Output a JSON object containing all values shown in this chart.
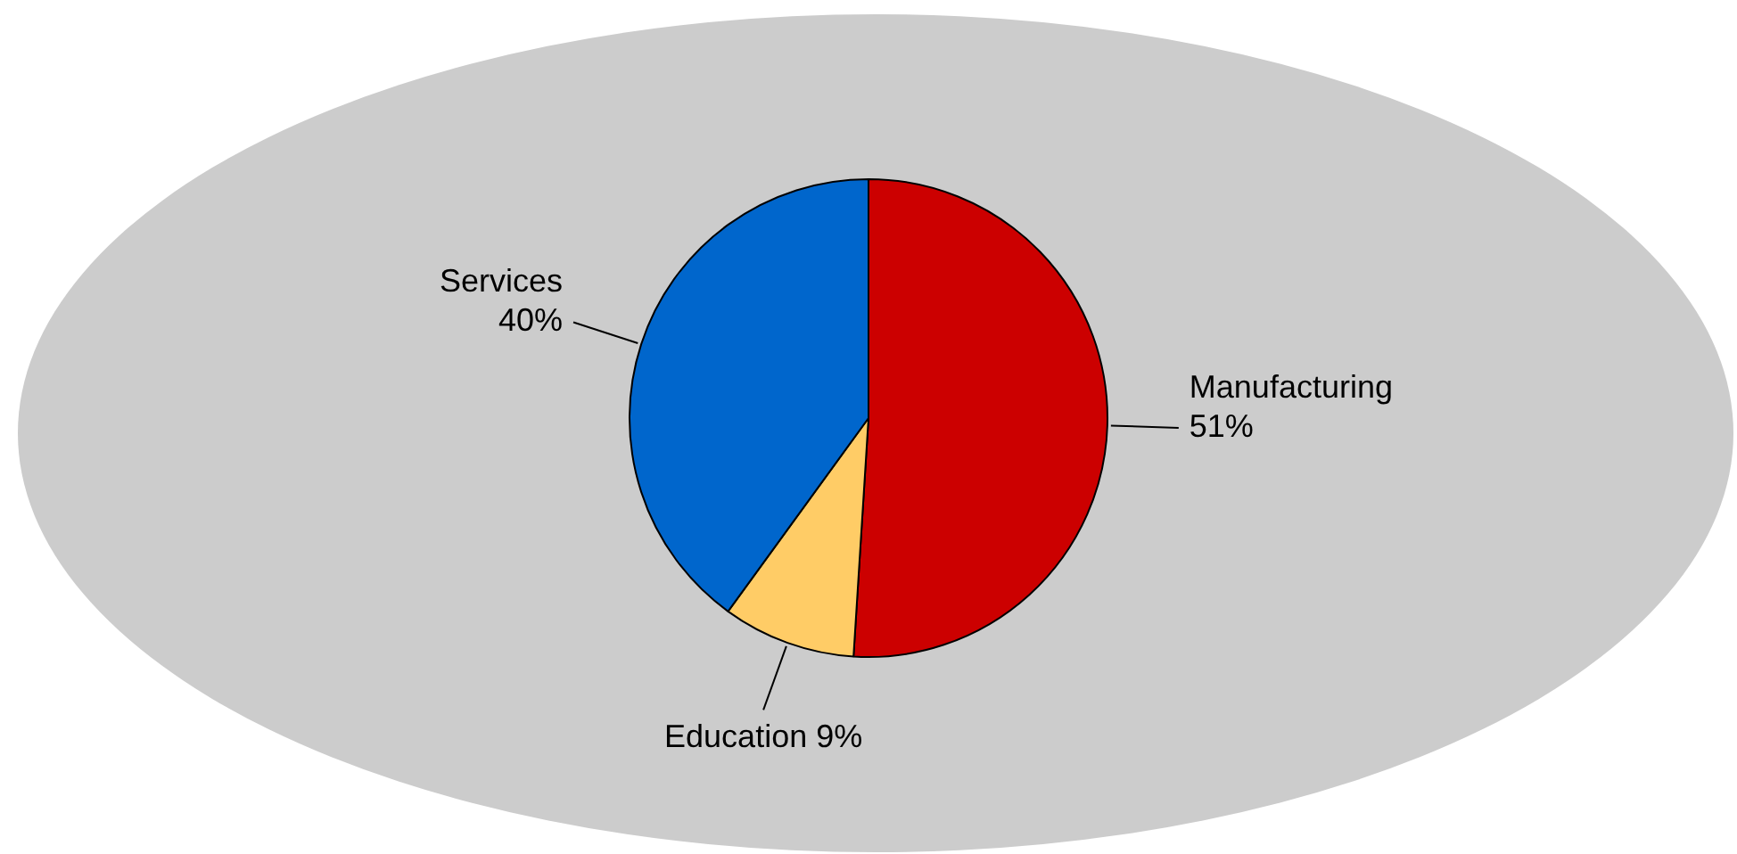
{
  "chart_data": {
    "type": "pie",
    "categories": [
      "Manufacturing",
      "Education",
      "Services"
    ],
    "values": [
      51,
      9,
      40
    ],
    "value_labels": [
      "51%",
      "9%",
      "40%"
    ],
    "colors": [
      "#cc0000",
      "#ffcc66",
      "#0066cc"
    ],
    "legend": false
  }
}
